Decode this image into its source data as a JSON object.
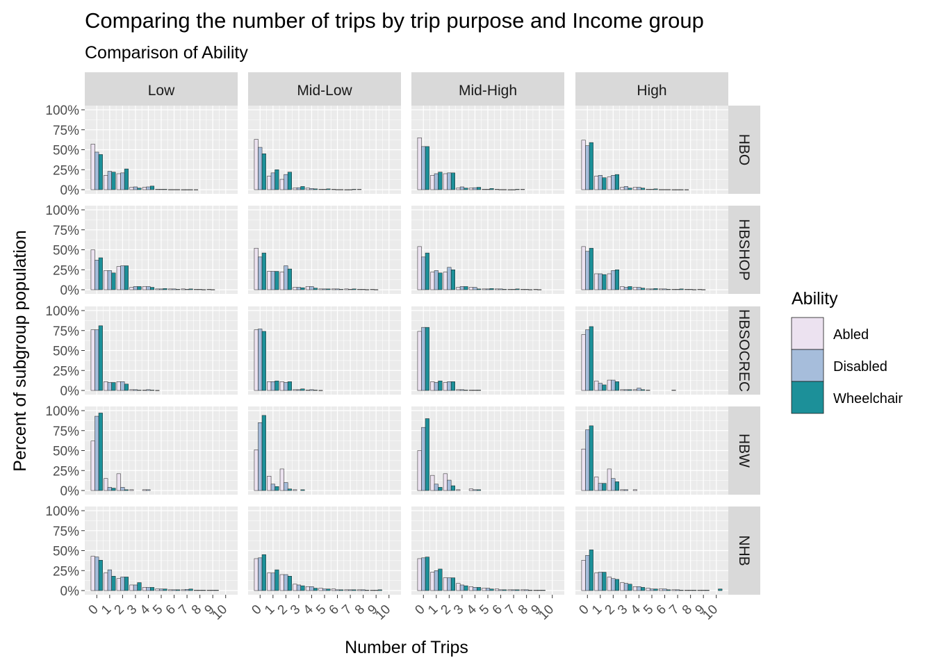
{
  "chart_data": {
    "type": "bar",
    "title": "Comparing the number of trips by trip purpose and Income group",
    "subtitle": "Comparison of Ability",
    "xlabel": "Number of Trips",
    "ylabel": "Percent of subgroup population",
    "x_ticks": [
      "0",
      "1",
      "2",
      "3",
      "4",
      "5",
      "6",
      "7",
      "8",
      "9",
      "10"
    ],
    "y_ticks": [
      "0%",
      "25%",
      "50%",
      "75%",
      "100%"
    ],
    "ylim": [
      0,
      100
    ],
    "xlim": [
      -0.5,
      10.5
    ],
    "grid": true,
    "legend_title": "Ability",
    "legend_position": "right",
    "series": [
      {
        "name": "Abled",
        "color": "#ece2f0"
      },
      {
        "name": "Disabled",
        "color": "#a6bddb"
      },
      {
        "name": "Wheelchair",
        "color": "#1c9099"
      }
    ],
    "col_facets": [
      "Low",
      "Mid-Low",
      "Mid-High",
      "High"
    ],
    "row_facets": [
      "HBO",
      "HBSHOP",
      "HBSOCREC",
      "HBW",
      "NHB"
    ],
    "panels": [
      {
        "row": "HBO",
        "col": "Low",
        "values": {
          "Abled": [
            57,
            18,
            20,
            3,
            3,
            0.5,
            0.2,
            0.1,
            0.1,
            0,
            0
          ],
          "Disabled": [
            47,
            23,
            21,
            3.5,
            3.5,
            0.5,
            0.2,
            0.1,
            0,
            0,
            0
          ],
          "Wheelchair": [
            44,
            22,
            26,
            2,
            4.5,
            0.5,
            0.2,
            0.1,
            0,
            0,
            0
          ]
        }
      },
      {
        "row": "HBO",
        "col": "Mid-Low",
        "values": {
          "Abled": [
            63,
            17,
            13,
            2,
            2,
            0.5,
            0.5,
            0.1,
            0.5,
            0,
            0
          ],
          "Disabled": [
            53,
            21,
            19,
            2.5,
            1.5,
            0.5,
            0.2,
            0.1,
            0,
            0,
            0
          ],
          "Wheelchair": [
            45,
            25,
            22,
            4,
            1,
            1,
            0.2,
            0.5,
            0,
            0,
            0
          ]
        }
      },
      {
        "row": "HBO",
        "col": "Mid-High",
        "values": {
          "Abled": [
            65,
            18,
            20,
            2,
            2,
            0.5,
            0.5,
            0.1,
            0.5,
            0,
            0
          ],
          "Disabled": [
            54,
            20,
            21,
            3.5,
            2.5,
            0.5,
            0.2,
            0.1,
            0,
            0,
            0
          ],
          "Wheelchair": [
            54,
            22,
            21,
            2,
            3,
            1.5,
            0.2,
            0.5,
            0,
            0,
            0
          ]
        }
      },
      {
        "row": "HBO",
        "col": "High",
        "values": {
          "Abled": [
            62,
            17,
            16,
            3,
            3,
            0.5,
            0.2,
            0.1,
            0.1,
            0,
            0
          ],
          "Disabled": [
            55,
            18,
            18,
            4,
            3,
            0.5,
            0.2,
            0.1,
            0,
            0,
            0
          ],
          "Wheelchair": [
            59,
            15,
            19,
            2,
            2,
            1,
            0.2,
            0.1,
            0,
            0,
            0
          ]
        }
      },
      {
        "row": "HBSHOP",
        "col": "Low",
        "values": {
          "Abled": [
            50,
            24,
            29,
            3,
            4,
            1,
            1,
            1,
            0.5,
            0.5,
            0
          ],
          "Disabled": [
            37,
            24,
            30,
            4,
            4,
            1,
            1,
            0.5,
            0.5,
            0.2,
            0
          ],
          "Wheelchair": [
            40,
            21,
            30,
            4,
            3,
            1.5,
            0.5,
            1,
            0.2,
            0,
            0
          ]
        }
      },
      {
        "row": "HBSHOP",
        "col": "Mid-Low",
        "values": {
          "Abled": [
            52,
            23,
            22,
            3,
            4,
            1,
            1,
            1,
            0.5,
            0.5,
            0
          ],
          "Disabled": [
            41,
            23,
            30,
            3,
            4,
            1,
            1,
            0.5,
            0.5,
            0.2,
            0
          ],
          "Wheelchair": [
            46,
            23,
            26,
            2.5,
            2,
            1,
            0.5,
            1,
            0.2,
            0,
            0
          ]
        }
      },
      {
        "row": "HBSHOP",
        "col": "Mid-High",
        "values": {
          "Abled": [
            54,
            22,
            22,
            3,
            3,
            1,
            1,
            0.5,
            0.5,
            0.5,
            0
          ],
          "Disabled": [
            41,
            24,
            28,
            4,
            3,
            1,
            1,
            0.5,
            0.5,
            0.2,
            0
          ],
          "Wheelchair": [
            46,
            21,
            25,
            4,
            1,
            1.5,
            0.5,
            1,
            0.2,
            0,
            0
          ]
        }
      },
      {
        "row": "HBSHOP",
        "col": "High",
        "values": {
          "Abled": [
            54,
            20,
            20,
            4,
            3,
            1,
            1,
            0.5,
            0.5,
            0.5,
            0
          ],
          "Disabled": [
            48,
            20,
            24,
            3,
            3,
            1,
            1,
            0.5,
            0.5,
            0.2,
            0
          ],
          "Wheelchair": [
            52,
            19,
            25,
            4,
            2,
            1.5,
            0.5,
            1,
            0.2,
            0,
            0
          ]
        }
      },
      {
        "row": "HBSOCREC",
        "col": "Low",
        "values": {
          "Abled": [
            76,
            11,
            11,
            1,
            0.5,
            0.2,
            0,
            0,
            0,
            0,
            0
          ],
          "Disabled": [
            76,
            10,
            11,
            1,
            1,
            0,
            0,
            0,
            0,
            0,
            0
          ],
          "Wheelchair": [
            81,
            10,
            8,
            0.5,
            0.5,
            0,
            0,
            0,
            0,
            0,
            0
          ]
        }
      },
      {
        "row": "HBSOCREC",
        "col": "Mid-Low",
        "values": {
          "Abled": [
            76,
            11,
            11,
            1,
            0.5,
            0.2,
            0,
            0,
            0,
            0,
            0
          ],
          "Disabled": [
            77,
            11,
            10,
            1,
            1,
            0,
            0,
            0,
            0,
            0,
            0
          ],
          "Wheelchair": [
            74,
            12,
            11,
            2,
            0.5,
            0,
            0,
            0,
            0,
            0,
            0
          ]
        }
      },
      {
        "row": "HBSOCREC",
        "col": "Mid-High",
        "values": {
          "Abled": [
            74,
            11,
            10,
            1,
            0.5,
            0,
            0,
            0,
            0,
            0,
            0
          ],
          "Disabled": [
            79,
            10,
            11,
            1,
            0.5,
            0,
            0,
            0,
            0,
            0,
            0
          ],
          "Wheelchair": [
            79,
            12,
            11,
            0.5,
            0.5,
            0,
            0,
            0,
            0,
            0,
            0
          ]
        }
      },
      {
        "row": "HBSOCREC",
        "col": "High",
        "values": {
          "Abled": [
            70,
            12,
            13,
            1,
            1,
            0.5,
            0,
            0.5,
            0,
            0,
            0
          ],
          "Disabled": [
            76,
            9,
            13,
            1,
            3,
            0,
            0,
            0,
            0,
            0,
            0
          ],
          "Wheelchair": [
            80,
            7,
            11,
            1,
            1,
            0,
            0,
            0,
            0,
            0,
            0
          ]
        }
      },
      {
        "row": "HBW",
        "col": "Low",
        "values": {
          "Abled": [
            62,
            15,
            21,
            1,
            1,
            0,
            0,
            0,
            0,
            0,
            0
          ],
          "Disabled": [
            93,
            4,
            4,
            0,
            1,
            0,
            0,
            0,
            0,
            0,
            0
          ],
          "Wheelchair": [
            97,
            3,
            1,
            0,
            0,
            0,
            0,
            0,
            0,
            0,
            0
          ]
        }
      },
      {
        "row": "HBW",
        "col": "Mid-Low",
        "values": {
          "Abled": [
            51,
            18,
            27,
            1,
            0,
            0,
            0,
            0,
            0,
            0,
            0
          ],
          "Disabled": [
            85,
            8,
            10,
            0,
            0,
            0,
            0,
            0,
            0,
            0,
            0
          ],
          "Wheelchair": [
            94,
            5,
            2,
            1,
            0,
            0,
            0,
            0,
            0,
            0,
            0
          ]
        }
      },
      {
        "row": "HBW",
        "col": "Mid-High",
        "values": {
          "Abled": [
            50,
            19,
            21,
            1,
            2,
            0,
            0,
            0,
            0,
            0,
            0
          ],
          "Disabled": [
            79,
            8,
            13,
            0,
            1,
            0,
            0,
            0,
            0,
            0,
            0
          ],
          "Wheelchair": [
            90,
            4,
            6,
            0,
            1,
            0,
            0,
            0,
            0,
            0,
            0
          ]
        }
      },
      {
        "row": "HBW",
        "col": "High",
        "values": {
          "Abled": [
            52,
            17,
            27,
            1,
            1,
            0,
            0,
            0,
            0,
            0,
            0
          ],
          "Disabled": [
            76,
            9,
            15,
            1,
            0,
            0,
            0,
            0,
            0,
            0,
            0
          ],
          "Wheelchair": [
            81,
            9,
            11,
            0,
            0,
            0,
            0,
            0,
            0,
            0,
            0
          ]
        }
      },
      {
        "row": "NHB",
        "col": "Low",
        "values": {
          "Abled": [
            43,
            22,
            15,
            7,
            4,
            2,
            1,
            1,
            0.5,
            0.5,
            0
          ],
          "Disabled": [
            42,
            26,
            17,
            7,
            4,
            2,
            1,
            1.5,
            0.5,
            0.5,
            0
          ],
          "Wheelchair": [
            38,
            18,
            17,
            10,
            4,
            2,
            1,
            2,
            0.5,
            0.5,
            0
          ]
        }
      },
      {
        "row": "NHB",
        "col": "Mid-Low",
        "values": {
          "Abled": [
            40,
            22,
            20,
            8,
            5,
            3,
            2,
            1,
            1,
            0.5,
            0
          ],
          "Disabled": [
            41,
            22,
            20,
            7,
            5,
            2,
            1,
            1,
            1,
            0.5,
            0
          ],
          "Wheelchair": [
            45,
            26,
            18,
            6,
            3,
            2,
            1,
            1,
            0.5,
            1,
            0
          ]
        }
      },
      {
        "row": "NHB",
        "col": "Mid-High",
        "values": {
          "Abled": [
            40,
            23,
            16,
            9,
            5,
            3,
            2,
            1,
            1,
            0.5,
            0
          ],
          "Disabled": [
            41,
            25,
            16,
            7,
            4,
            3,
            1,
            1,
            1,
            0.5,
            0
          ],
          "Wheelchair": [
            42,
            27,
            16,
            6,
            4,
            2,
            1,
            1,
            0.5,
            0.5,
            0
          ]
        }
      },
      {
        "row": "NHB",
        "col": "High",
        "values": {
          "Abled": [
            38,
            22,
            17,
            10,
            5,
            3,
            2,
            1,
            0.5,
            0.5,
            0
          ],
          "Disabled": [
            44,
            23,
            15,
            9,
            5,
            2,
            2,
            1,
            0.5,
            0.5,
            0
          ],
          "Wheelchair": [
            51,
            23,
            14,
            8,
            4,
            2,
            1,
            0.5,
            0.5,
            0.5,
            2
          ]
        }
      }
    ]
  }
}
